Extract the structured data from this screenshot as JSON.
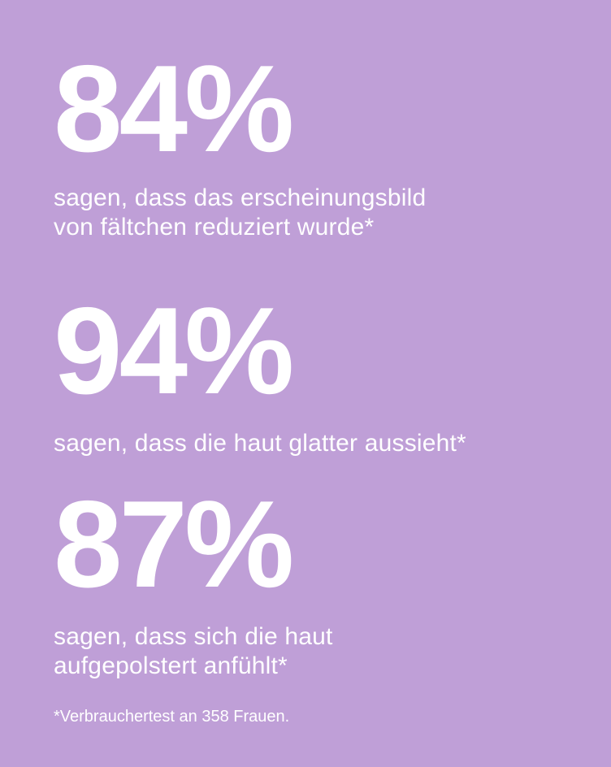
{
  "background_color": "#bf9fd7",
  "text_color": "#ffffff",
  "stats": [
    {
      "value": "84%",
      "caption": "sagen, dass das erscheinungsbild\nvon fältchen reduziert wurde*"
    },
    {
      "value": "94%",
      "caption": "sagen, dass die haut glatter aussieht*"
    },
    {
      "value": "87%",
      "caption": "sagen, dass sich die haut\naufgepolstert anfühlt*"
    }
  ],
  "footnote": "*Verbrauchertest an 358 Frauen."
}
